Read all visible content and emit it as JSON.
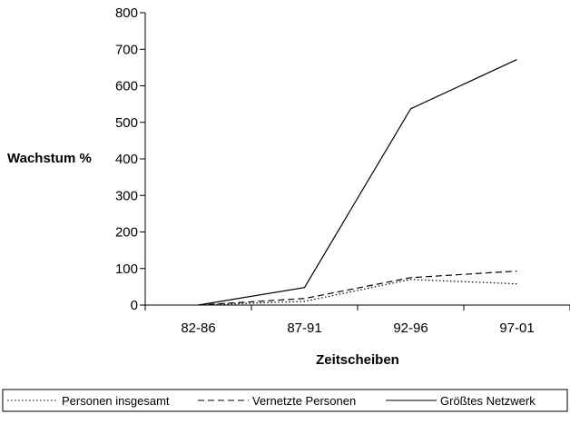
{
  "chart_data": {
    "type": "line",
    "xlabel": "Zeitscheiben",
    "ylabel": "Wachstum %",
    "categories": [
      "82-86",
      "87-91",
      "92-96",
      "97-01"
    ],
    "ylim": [
      0,
      800
    ],
    "yticks": [
      0,
      100,
      200,
      300,
      400,
      500,
      600,
      700,
      800
    ],
    "grid": false,
    "legend_position": "bottom",
    "series": [
      {
        "name": "Personen insgesamt",
        "values": [
          0,
          10,
          70,
          58
        ],
        "style": "dotted",
        "color": "#000000"
      },
      {
        "name": "Vernetzte Personen",
        "values": [
          0,
          18,
          75,
          93
        ],
        "style": "dashed",
        "color": "#000000"
      },
      {
        "name": "Größtes Netzwerk",
        "values": [
          0,
          48,
          537,
          672
        ],
        "style": "solid",
        "color": "#000000"
      }
    ]
  }
}
